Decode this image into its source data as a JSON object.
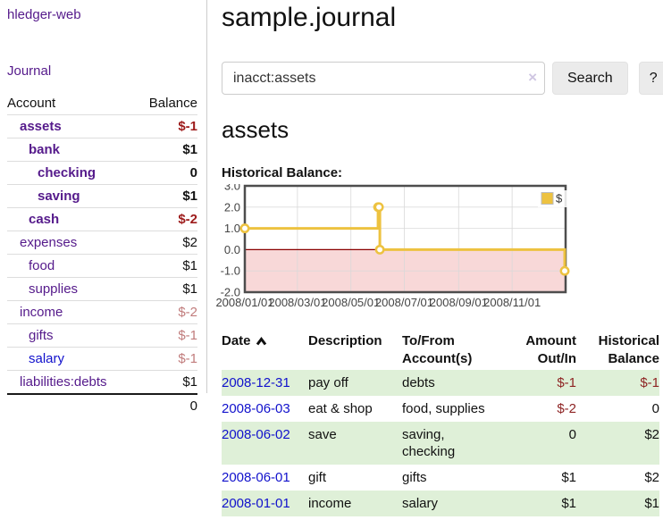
{
  "app": {
    "brand": "hledger-web"
  },
  "sidebar": {
    "nav": [
      {
        "label": "Journal"
      }
    ],
    "accounts_table": {
      "headers": {
        "account": "Account",
        "balance": "Balance"
      },
      "rows": [
        {
          "name": "assets",
          "depth": 1,
          "balance": "$-1",
          "bold": true,
          "neg": "strong"
        },
        {
          "name": "bank",
          "depth": 2,
          "balance": "$1",
          "bold": true,
          "neg": "none"
        },
        {
          "name": "checking",
          "depth": 3,
          "balance": "0",
          "bold": true,
          "neg": "none"
        },
        {
          "name": "saving",
          "depth": 3,
          "balance": "$1",
          "bold": true,
          "neg": "none"
        },
        {
          "name": "cash",
          "depth": 2,
          "balance": "$-2",
          "bold": true,
          "neg": "strong"
        },
        {
          "name": "expenses",
          "depth": 1,
          "balance": "$2",
          "bold": false,
          "neg": "none"
        },
        {
          "name": "food",
          "depth": 2,
          "balance": "$1",
          "bold": false,
          "neg": "none"
        },
        {
          "name": "supplies",
          "depth": 2,
          "balance": "$1",
          "bold": false,
          "neg": "none"
        },
        {
          "name": "income",
          "depth": 1,
          "balance": "$-2",
          "bold": false,
          "neg": "muted"
        },
        {
          "name": "gifts",
          "depth": 2,
          "balance": "$-1",
          "bold": false,
          "neg": "muted"
        },
        {
          "name": "salary",
          "depth": 2,
          "balance": "$-1",
          "bold": false,
          "neg": "muted",
          "link_color": "blue"
        },
        {
          "name": "liabilities:debts",
          "depth": 1,
          "balance": "$1",
          "bold": false,
          "neg": "none"
        }
      ],
      "total": "0"
    }
  },
  "header": {
    "title": "sample.journal"
  },
  "search": {
    "value": "inacct:assets",
    "clear_icon": "×",
    "button": "Search",
    "help_button": "?"
  },
  "account_page": {
    "heading": "assets",
    "chart_heading": "Historical Balance:"
  },
  "chart_data": {
    "type": "line",
    "title": "Historical Balance:",
    "step": true,
    "series": [
      {
        "name": "$",
        "color": "#edc240",
        "points": [
          [
            "2008-01-01",
            1
          ],
          [
            "2008-06-01",
            2
          ],
          [
            "2008-06-02",
            2
          ],
          [
            "2008-06-03",
            0
          ],
          [
            "2008-12-31",
            -1
          ]
        ]
      }
    ],
    "x_ticks": [
      {
        "date": "2008-01-01",
        "label": "2008/01/01"
      },
      {
        "date": "2008-03-01",
        "label": "2008/03/01"
      },
      {
        "date": "2008-05-01",
        "label": "2008/05/01"
      },
      {
        "date": "2008-07-01",
        "label": "2008/07/01"
      },
      {
        "date": "2008-09-01",
        "label": "2008/09/01"
      },
      {
        "date": "2008-11-01",
        "label": "2008/11/01"
      }
    ],
    "y_ticks": [
      "3.0",
      "2.0",
      "1.0",
      "0.0",
      "-1.0",
      "-2.0"
    ],
    "ylim": [
      -2,
      3
    ],
    "xlim": [
      "2008-01-01",
      "2009-01-01"
    ],
    "grid": true,
    "legend": {
      "label": "$",
      "position": "top-right"
    },
    "negative_region": true
  },
  "register": {
    "headers": [
      {
        "line1": "Date",
        "line2": "",
        "sortable": true
      },
      {
        "line1": "Description",
        "line2": ""
      },
      {
        "line1": "To/From",
        "line2": "Account(s)"
      },
      {
        "line1": "Amount",
        "line2": "Out/In"
      },
      {
        "line1": "Historical",
        "line2": "Balance"
      }
    ],
    "rows": [
      {
        "date": "2008-12-31",
        "description": "pay off",
        "accounts": "debts",
        "amount": "$-1",
        "amount_neg": true,
        "balance": "$-1",
        "balance_neg": true
      },
      {
        "date": "2008-06-03",
        "description": "eat & shop",
        "accounts": "food, supplies",
        "amount": "$-2",
        "amount_neg": true,
        "balance": "0",
        "balance_neg": false
      },
      {
        "date": "2008-06-02",
        "description": "save",
        "accounts": "saving,\nchecking",
        "amount": "0",
        "amount_neg": false,
        "balance": "$2",
        "balance_neg": false
      },
      {
        "date": "2008-06-01",
        "description": "gift",
        "accounts": "gifts",
        "amount": "$1",
        "amount_neg": false,
        "balance": "$2",
        "balance_neg": false
      },
      {
        "date": "2008-01-01",
        "description": "income",
        "accounts": "salary",
        "amount": "$1",
        "amount_neg": false,
        "balance": "$1",
        "balance_neg": false
      }
    ]
  },
  "colors": {
    "link_purple": "#551a8b",
    "link_blue": "#1111cc",
    "negative_strong": "#9d1b1b",
    "negative_muted": "#c17c7c",
    "negative_register": "#8e2424",
    "row_stripe_green": "#dff0d8",
    "chart_series_yellow": "#edc240",
    "chart_negative_fill": "#f8d8d8",
    "chart_zero_line": "#8b0000",
    "chart_frame": "#4d4d4d",
    "chart_grid": "#d9d9d9"
  }
}
